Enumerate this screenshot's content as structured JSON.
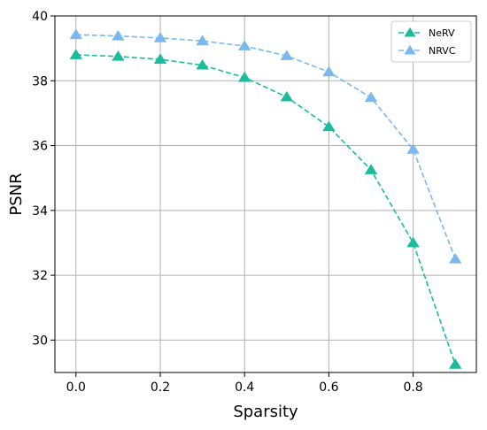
{
  "chart_data": {
    "type": "line",
    "xlabel": "Sparsity",
    "ylabel": "PSNR",
    "xlim": [
      -0.05,
      0.95
    ],
    "ylim": [
      29.0,
      40.0
    ],
    "xticks": [
      0.0,
      0.2,
      0.4,
      0.6,
      0.8
    ],
    "xtick_labels": [
      "0.0",
      "0.2",
      "0.4",
      "0.6",
      "0.8"
    ],
    "yticks": [
      30,
      32,
      34,
      36,
      38,
      40
    ],
    "ytick_labels": [
      "30",
      "32",
      "34",
      "36",
      "38",
      "40"
    ],
    "grid": true,
    "legend_position": "top-right",
    "x": [
      0.0,
      0.1,
      0.2,
      0.3,
      0.4,
      0.5,
      0.6,
      0.7,
      0.8,
      0.9
    ],
    "series": [
      {
        "name": "NeRV",
        "color": "#1bbc9b",
        "marker": "triangle",
        "line_style": "dashed",
        "values": [
          38.8,
          38.75,
          38.66,
          38.48,
          38.1,
          37.5,
          36.58,
          35.25,
          33.0,
          29.25
        ]
      },
      {
        "name": "NRVC",
        "color": "#7ab8ee",
        "marker": "triangle",
        "line_style": "dashed",
        "values": [
          39.42,
          39.38,
          39.32,
          39.23,
          39.07,
          38.77,
          38.27,
          37.48,
          35.88,
          32.5
        ]
      }
    ]
  }
}
